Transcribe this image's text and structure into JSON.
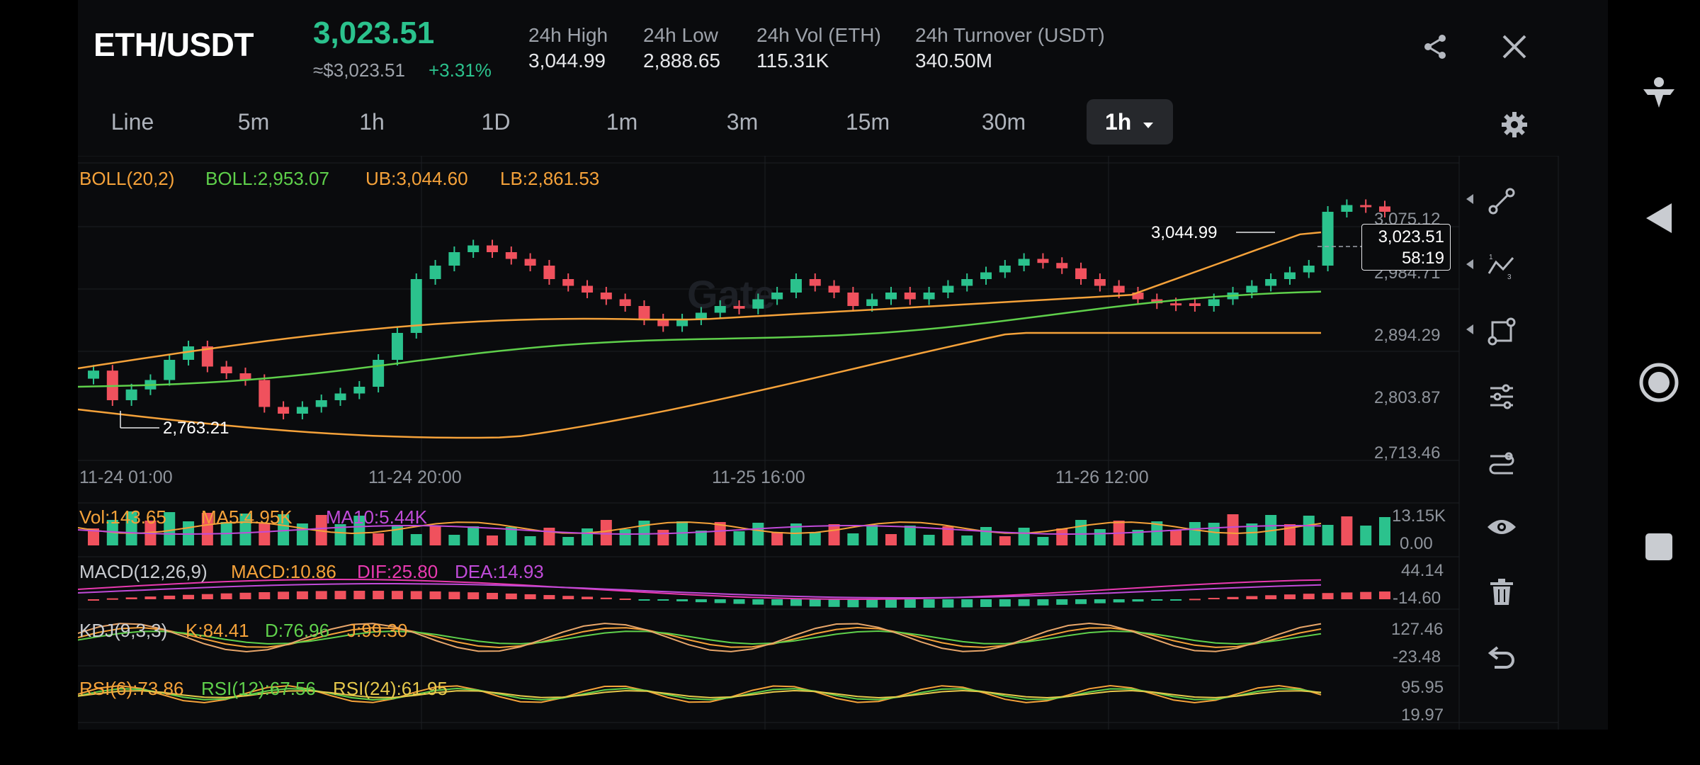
{
  "header": {
    "pair": "ETH/USDT",
    "price": "3,023.51",
    "fiat": "≈$3,023.51",
    "change": "+3.31%",
    "stats": [
      {
        "label": "24h High",
        "value": "3,044.99"
      },
      {
        "label": "24h Low",
        "value": "2,888.65"
      },
      {
        "label": "24h Vol (ETH)",
        "value": "115.31K"
      },
      {
        "label": "24h Turnover (USDT)",
        "value": "340.50M"
      }
    ]
  },
  "tabs": [
    "Line",
    "5m",
    "1h",
    "1D",
    "1m",
    "3m",
    "15m",
    "30m"
  ],
  "active_interval": "1h",
  "main_chart": {
    "legend": {
      "boll": "BOLL(20,2)",
      "mid": "BOLL:2,953.07",
      "ub": "UB:3,044.60",
      "lb": "LB:2,861.53"
    },
    "y_ticks": [
      "3,075.12",
      "2,984.71",
      "2,894.29",
      "2,803.87",
      "2,713.46"
    ],
    "x_ticks": [
      "11-24 01:00",
      "11-24 20:00",
      "11-25 16:00",
      "11-26 12:00"
    ],
    "high_marker": "3,044.99",
    "low_marker": "2,763.21",
    "current_price": "3,023.51",
    "countdown": "58:19",
    "watermark": "Gate"
  },
  "volume": {
    "legend": {
      "vol": "Vol:143.65",
      "ma5": "MA5:4.95K",
      "ma10": "MA10:5.44K"
    },
    "y_ticks": [
      "13.15K",
      "0.00"
    ]
  },
  "macd": {
    "legend": {
      "name": "MACD(12,26,9)",
      "macd": "MACD:10.86",
      "dif": "DIF:25.80",
      "dea": "DEA:14.93"
    },
    "y_ticks": [
      "44.14",
      "-14.60"
    ]
  },
  "kdj": {
    "legend": {
      "name": "KDJ(9,3,3)",
      "k": "K:84.41",
      "d": "D:76.96",
      "j": "J:99.30"
    },
    "y_ticks": [
      "127.46",
      "-23.48"
    ]
  },
  "rsi": {
    "legend": {
      "r6": "RSI(6):73.86",
      "r12": "RSI(12):67.56",
      "r24": "RSI(24):61.95"
    },
    "y_ticks": [
      "95.95",
      "19.97"
    ]
  },
  "colors": {
    "up": "#2bc28d",
    "down": "#f0515d",
    "boll_band": "#f5a23a",
    "boll_mid": "#5fd04b",
    "purple": "#c04bd8",
    "magenta": "#e83ab0"
  },
  "toolbar_icons": [
    "trendline-icon",
    "fib-icon",
    "shape-icon",
    "indicator-settings-icon",
    "indicator-icon",
    "eye-icon",
    "trash-icon",
    "undo-icon"
  ]
}
